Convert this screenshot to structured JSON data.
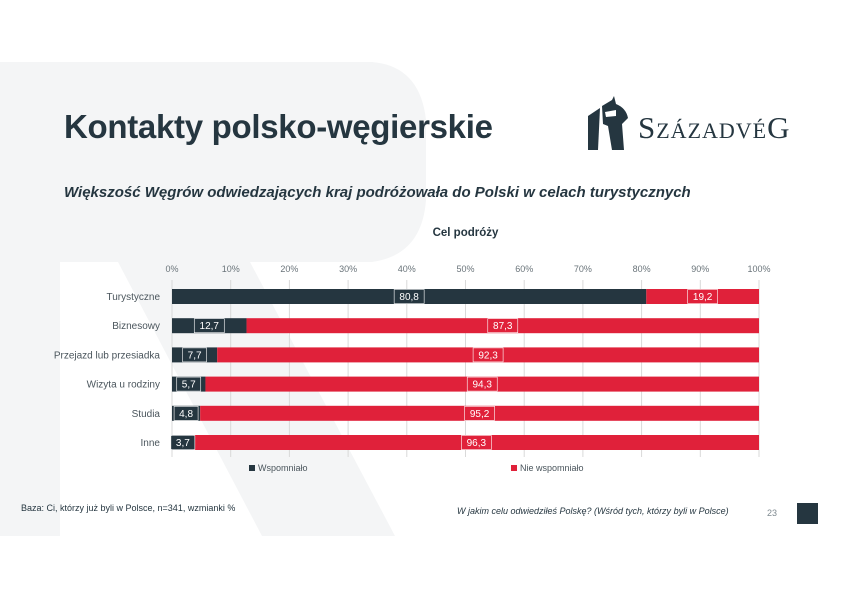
{
  "slide": {
    "title": "Kontakty polsko-węgierskie",
    "subtitle": "Większość Węgrów odwiedzających kraj podróżowała do Polski w celach turystycznych",
    "logo": {
      "text": "SzázadvéG",
      "icon": "knight-helmet-icon"
    },
    "footer": {
      "base": "Baza: Ci, którzy już byli w Polsce, n=341, wzmianki %",
      "question": "W jakim celu odwiedziłeś Polskę? (Wśród tych, którzy byli w Polsce)",
      "page_number": "23"
    }
  },
  "colors": {
    "dark": "#253640",
    "red": "#e0213a",
    "background_shape": "#f4f5f6",
    "grid": "#d9d9d9"
  },
  "chart_data": {
    "type": "bar",
    "orientation": "horizontal",
    "stacked": true,
    "title": "Cel podróży",
    "categories": [
      "Turystyczne",
      "Biznesowy",
      "Przejazd lub przesiadka",
      "Wizyta u rodziny",
      "Studia",
      "Inne"
    ],
    "series": [
      {
        "name": "Wspomniało",
        "color": "#253640",
        "values": [
          80.8,
          12.7,
          7.7,
          5.7,
          4.8,
          3.7
        ],
        "labels": [
          "80,8",
          "12,7",
          "7,7",
          "5,7",
          "4,8",
          "3,7"
        ]
      },
      {
        "name": "Nie wspomniało",
        "color": "#e0213a",
        "values": [
          19.2,
          87.3,
          92.3,
          94.3,
          95.2,
          96.3
        ],
        "labels": [
          "19,2",
          "87,3",
          "92,3",
          "94,3",
          "95,2",
          "96,3"
        ]
      }
    ],
    "xlim": [
      0,
      100
    ],
    "xticks": [
      "0%",
      "10%",
      "20%",
      "30%",
      "40%",
      "50%",
      "60%",
      "70%",
      "80%",
      "90%",
      "100%"
    ],
    "grid": true,
    "legend_position": "bottom"
  }
}
